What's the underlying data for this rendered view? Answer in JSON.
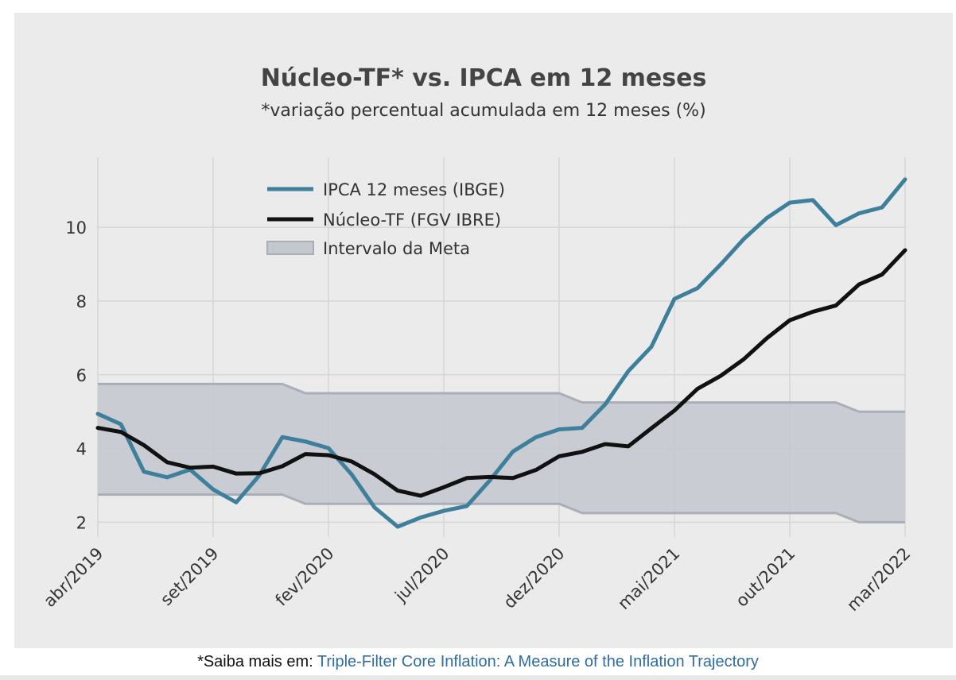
{
  "chart_data": {
    "type": "line",
    "title": "Núcleo-TF* vs. IPCA em 12 meses",
    "subtitle": "*variação percentual acumulada em 12 meses (%)",
    "xlabel": "",
    "ylabel": "",
    "ylim": [
      1.6,
      11.9
    ],
    "x_tick_labels": [
      "abr/2019",
      "set/2019",
      "fev/2020",
      "jul/2020",
      "dez/2020",
      "mai/2021",
      "out/2021",
      "mar/2022"
    ],
    "y_ticks": [
      2,
      4,
      6,
      8,
      10
    ],
    "grid": true,
    "legend_position": "top-left",
    "months": [
      "abr/2019",
      "mai/2019",
      "jun/2019",
      "jul/2019",
      "ago/2019",
      "set/2019",
      "out/2019",
      "nov/2019",
      "dez/2019",
      "jan/2020",
      "fev/2020",
      "mar/2020",
      "abr/2020",
      "mai/2020",
      "jun/2020",
      "jul/2020",
      "ago/2020",
      "set/2020",
      "out/2020",
      "nov/2020",
      "dez/2020",
      "jan/2021",
      "fev/2021",
      "mar/2021",
      "abr/2021",
      "mai/2021",
      "jun/2021",
      "jul/2021",
      "ago/2021",
      "set/2021",
      "out/2021",
      "nov/2021",
      "dez/2021",
      "jan/2022",
      "fev/2022",
      "mar/2022"
    ],
    "series": [
      {
        "name": "IPCA 12 meses (IBGE)",
        "color": "#3e7f9b",
        "values": [
          4.94,
          4.66,
          3.37,
          3.22,
          3.43,
          2.89,
          2.54,
          3.27,
          4.31,
          4.19,
          4.01,
          3.3,
          2.4,
          1.88,
          2.13,
          2.31,
          2.44,
          3.14,
          3.92,
          4.31,
          4.52,
          4.56,
          5.2,
          6.1,
          6.76,
          8.06,
          8.35,
          8.99,
          9.68,
          10.25,
          10.67,
          10.74,
          10.06,
          10.38,
          10.54,
          11.3
        ]
      },
      {
        "name": "Núcleo-TF (FGV IBRE)",
        "color": "#111111",
        "values": [
          4.56,
          4.45,
          4.09,
          3.63,
          3.48,
          3.51,
          3.32,
          3.33,
          3.52,
          3.85,
          3.82,
          3.65,
          3.3,
          2.86,
          2.72,
          2.95,
          3.2,
          3.23,
          3.2,
          3.42,
          3.79,
          3.91,
          4.12,
          4.06,
          4.55,
          5.03,
          5.62,
          5.97,
          6.42,
          6.99,
          7.48,
          7.71,
          7.88,
          8.45,
          8.72,
          9.38
        ]
      },
      {
        "name": "Intervalo da Meta",
        "color": "#b9bec7",
        "upper": [
          5.75,
          5.75,
          5.75,
          5.75,
          5.75,
          5.75,
          5.75,
          5.75,
          5.75,
          5.5,
          5.5,
          5.5,
          5.5,
          5.5,
          5.5,
          5.5,
          5.5,
          5.5,
          5.5,
          5.5,
          5.5,
          5.25,
          5.25,
          5.25,
          5.25,
          5.25,
          5.25,
          5.25,
          5.25,
          5.25,
          5.25,
          5.25,
          5.25,
          5.0,
          5.0,
          5.0
        ],
        "lower": [
          2.75,
          2.75,
          2.75,
          2.75,
          2.75,
          2.75,
          2.75,
          2.75,
          2.75,
          2.5,
          2.5,
          2.5,
          2.5,
          2.5,
          2.5,
          2.5,
          2.5,
          2.5,
          2.5,
          2.5,
          2.5,
          2.25,
          2.25,
          2.25,
          2.25,
          2.25,
          2.25,
          2.25,
          2.25,
          2.25,
          2.25,
          2.25,
          2.25,
          2.0,
          2.0,
          2.0
        ]
      }
    ]
  },
  "footer": {
    "prefix": "*Saiba mais em: ",
    "link_text": "Triple-Filter Core Inflation: A Measure of the Inflation Trajectory"
  },
  "colors": {
    "card_background": "#ebebeb",
    "grid": "#d6d6d6",
    "band_fill": "#c3c7ce",
    "band_edge": "#a9aeb7",
    "title": "#444444",
    "link": "#2e6da4"
  }
}
